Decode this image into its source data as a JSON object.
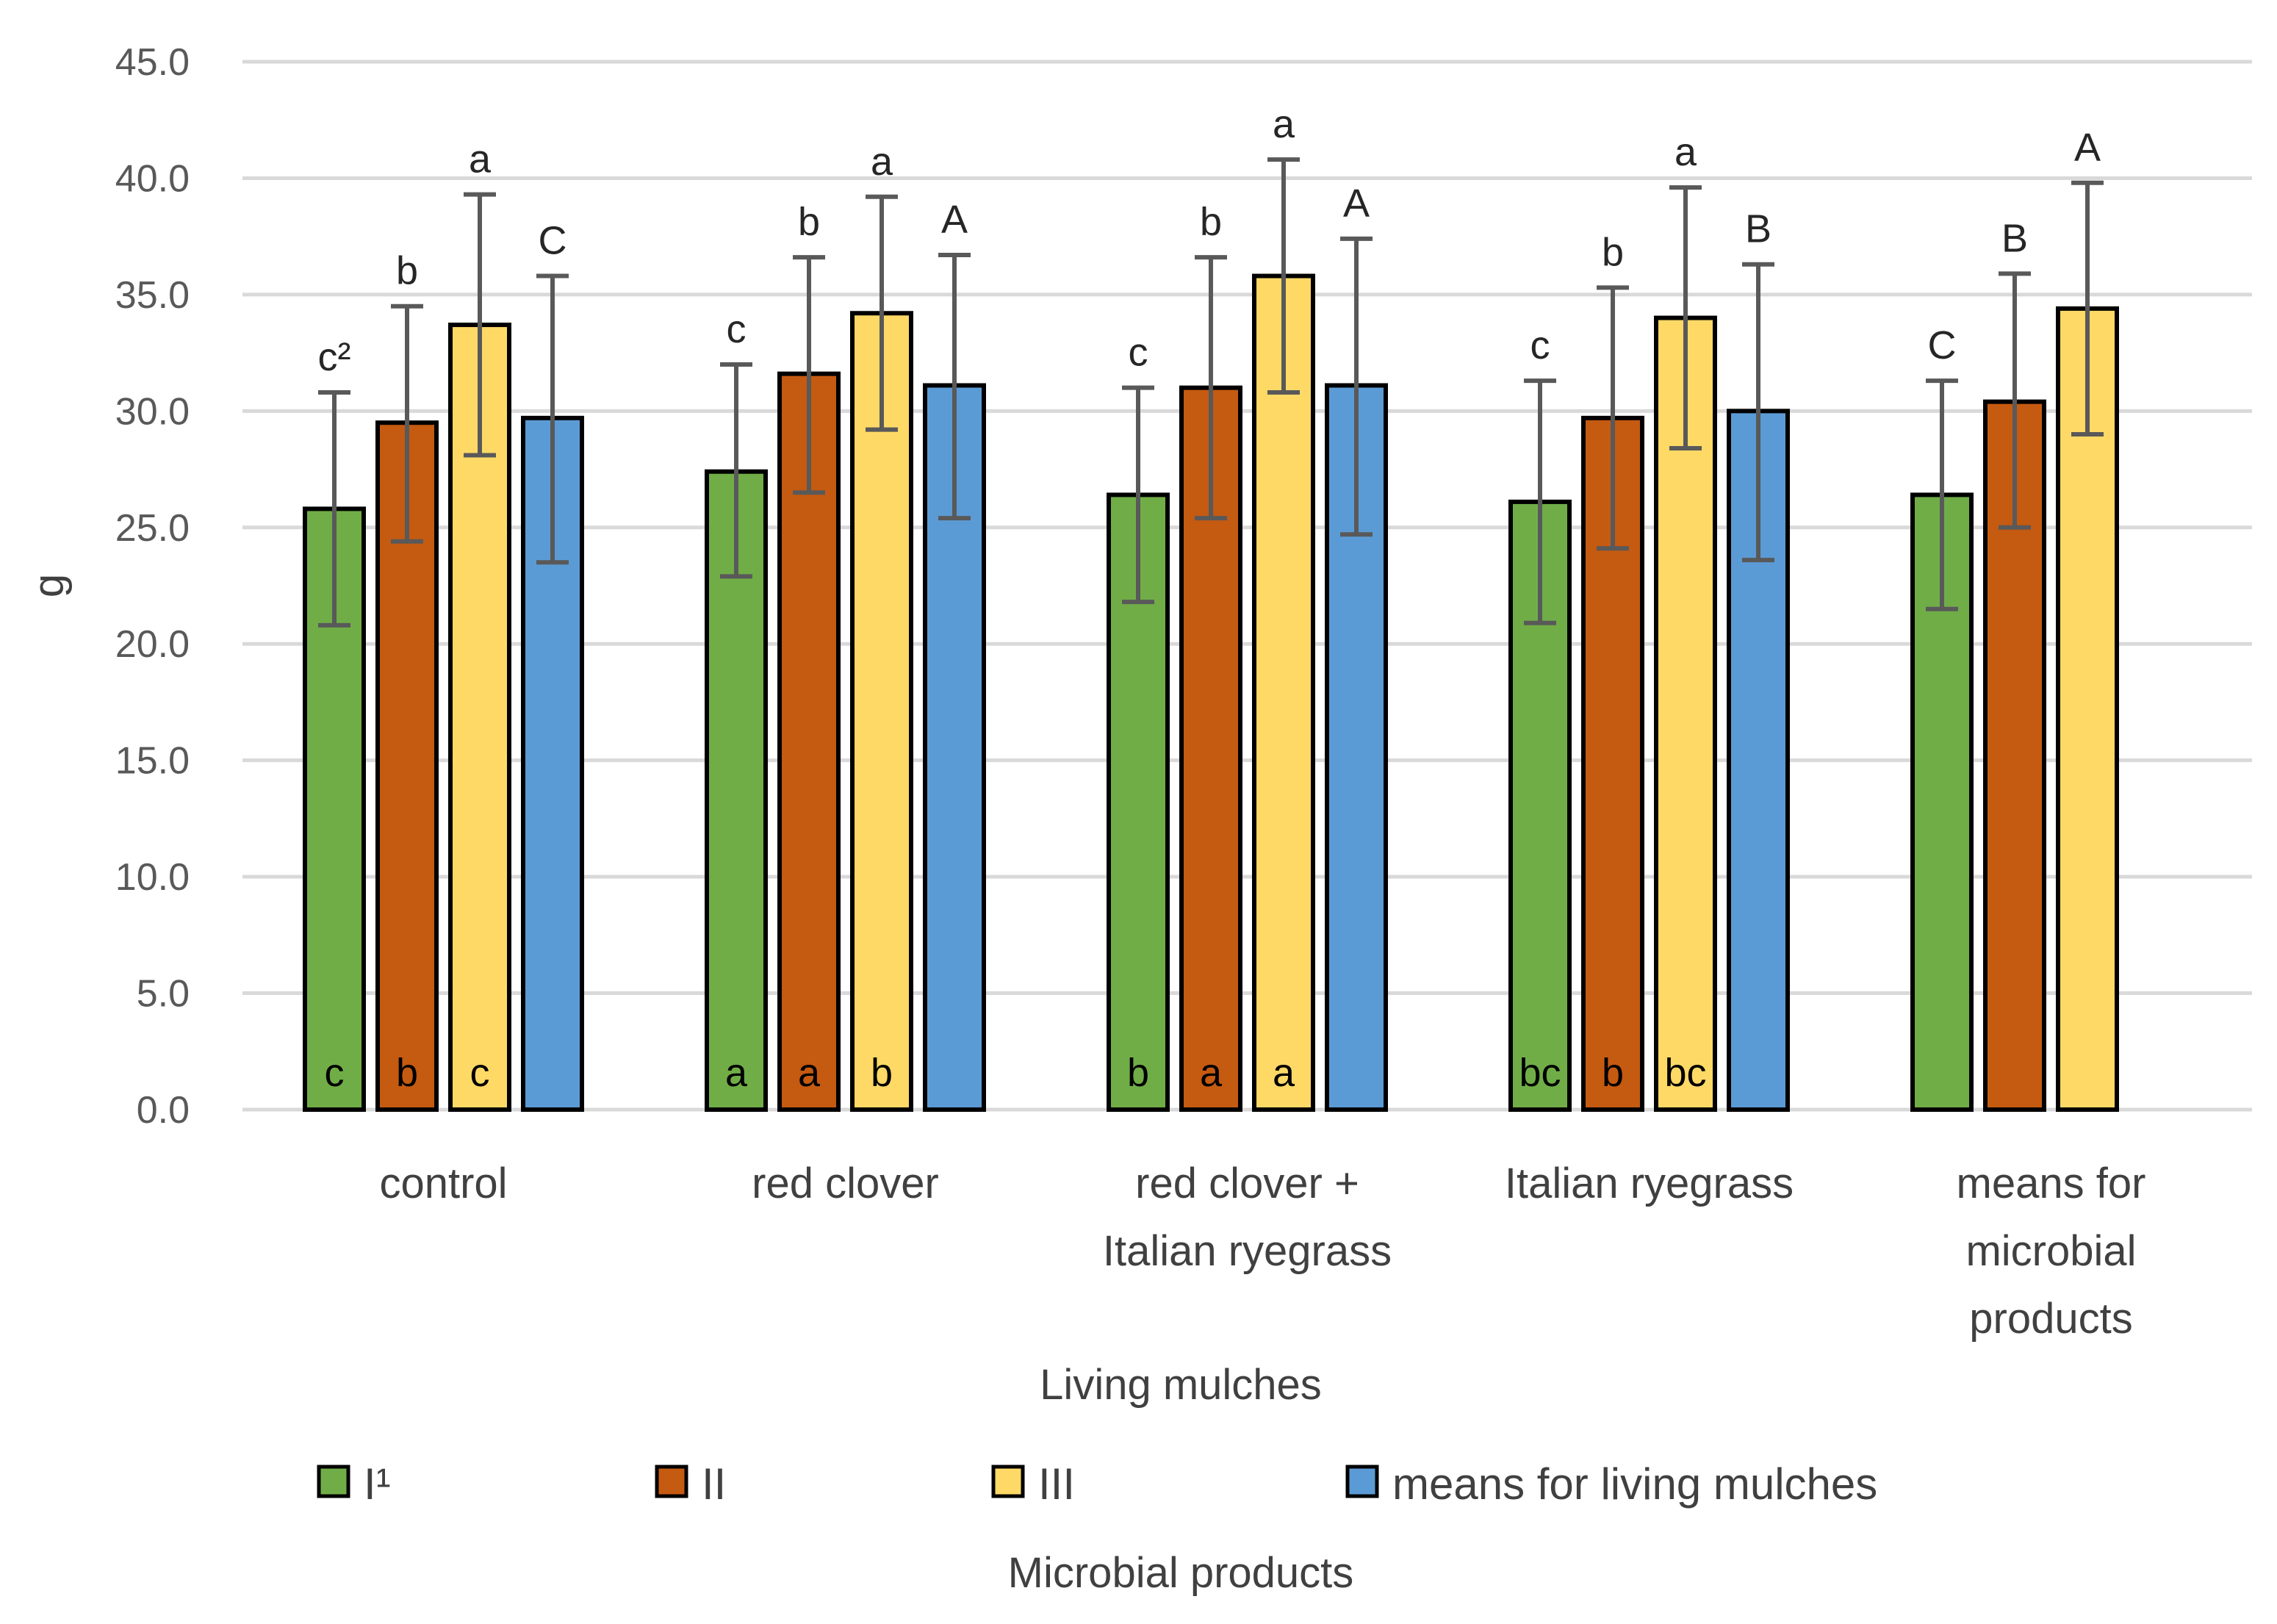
{
  "chart_data": {
    "type": "bar",
    "title": "",
    "xlabel": "Living mulches",
    "ylabel": "g",
    "ylim": [
      0,
      45
    ],
    "ytick_labels": [
      "0.0",
      "5.0",
      "10.0",
      "15.0",
      "20.0",
      "25.0",
      "30.0",
      "35.0",
      "40.0",
      "45.0"
    ],
    "yticks": [
      0,
      5,
      10,
      15,
      20,
      25,
      30,
      35,
      40,
      45
    ],
    "grid": true,
    "categories": [
      [
        "control"
      ],
      [
        "red clover"
      ],
      [
        "red clover +",
        "Italian ryegrass"
      ],
      [
        "Italian ryegrass"
      ],
      [
        "means for",
        "microbial",
        "products"
      ]
    ],
    "legend_title": "Microbial products",
    "legend_position": "bottom",
    "series": [
      {
        "name": "I¹",
        "color": "#70ad47",
        "values": [
          25.8,
          27.4,
          26.4,
          26.1,
          26.4
        ],
        "err_low": [
          20.8,
          22.9,
          21.8,
          20.9,
          21.5
        ],
        "err_high": [
          30.8,
          32.0,
          31.0,
          31.3,
          31.3
        ],
        "top_labels": [
          "c²",
          "c",
          "c",
          "c",
          "C"
        ],
        "inbar_labels": [
          "c",
          "a",
          "b",
          "bc",
          ""
        ]
      },
      {
        "name": "II",
        "color": "#c55a11",
        "values": [
          29.5,
          31.6,
          31.0,
          29.7,
          30.4
        ],
        "err_low": [
          24.4,
          26.5,
          25.4,
          24.1,
          25.0
        ],
        "err_high": [
          34.5,
          36.6,
          36.6,
          35.3,
          35.9
        ],
        "top_labels": [
          "b",
          "b",
          "b",
          "b",
          "B"
        ],
        "inbar_labels": [
          "b",
          "a",
          "a",
          "b",
          ""
        ]
      },
      {
        "name": "III",
        "color": "#ffd966",
        "values": [
          33.7,
          34.2,
          35.8,
          34.0,
          34.4
        ],
        "err_low": [
          28.1,
          29.2,
          30.8,
          28.4,
          29.0
        ],
        "err_high": [
          39.3,
          39.2,
          40.8,
          39.6,
          39.8
        ],
        "top_labels": [
          "a",
          "a",
          "a",
          "a",
          "A"
        ],
        "inbar_labels": [
          "c",
          "b",
          "a",
          "bc",
          ""
        ]
      },
      {
        "name": "means for living mulches",
        "color": "#5b9bd5",
        "values": [
          29.7,
          31.1,
          31.1,
          30.0,
          null
        ],
        "err_low": [
          23.5,
          25.4,
          24.7,
          23.6,
          null
        ],
        "err_high": [
          35.8,
          36.7,
          37.4,
          36.3,
          null
        ],
        "top_labels": [
          "C",
          "A",
          "A",
          "B",
          ""
        ],
        "inbar_labels": [
          "",
          "",
          "",
          "",
          ""
        ]
      }
    ]
  }
}
